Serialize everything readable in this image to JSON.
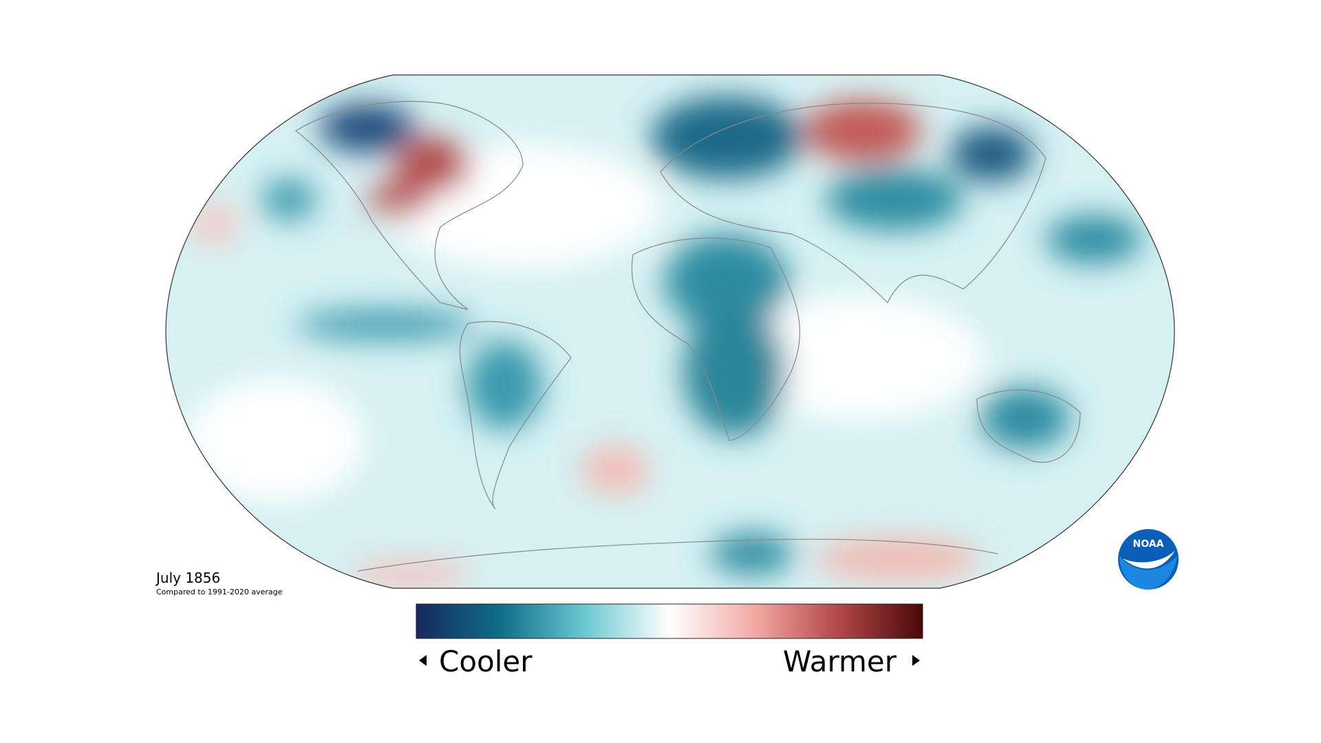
{
  "map": {
    "date": "July 1856",
    "subtitle": "Compared to 1991-2020 average",
    "legend": {
      "low": "Cooler",
      "high": "Warmer",
      "colors": [
        "#16295e",
        "#0e6e88",
        "#6cc8d2",
        "#ffffff",
        "#f3aaa5",
        "#b3474a",
        "#4a0707"
      ]
    }
  },
  "logo": "NOAA"
}
